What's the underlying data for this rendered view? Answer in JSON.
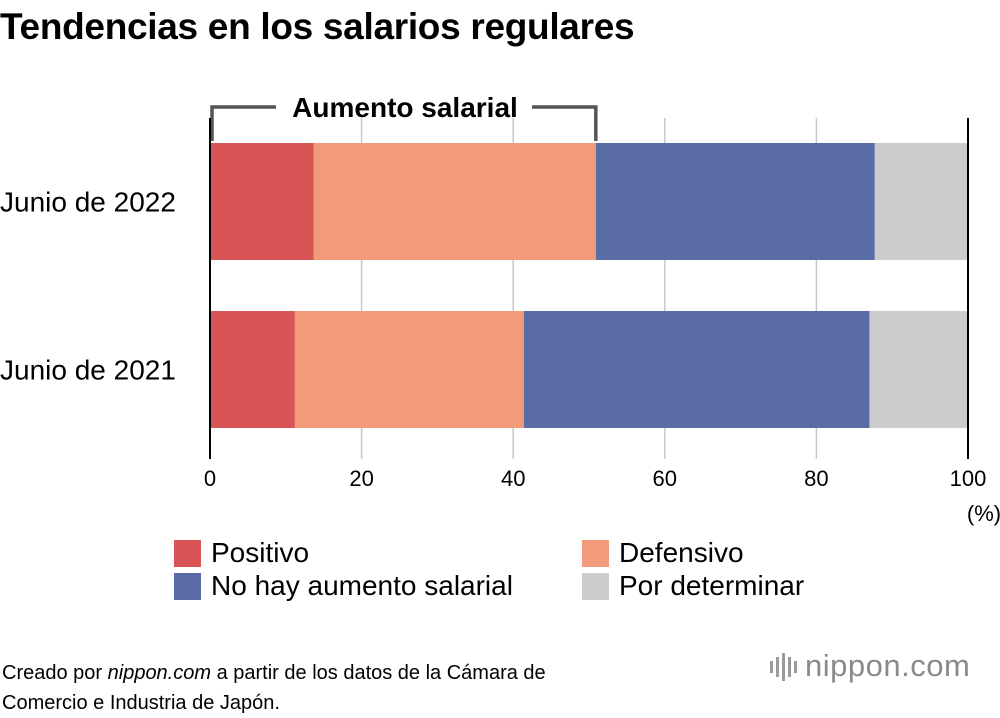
{
  "title": "Tendencias en los salarios regulares",
  "chart_data": {
    "type": "bar",
    "orientation": "horizontal",
    "stacked": true,
    "categories": [
      "Junio de 2022",
      "Junio de 2021"
    ],
    "series": [
      {
        "name": "Positivo",
        "color": "#d95454",
        "values": [
          13.7,
          11.2
        ]
      },
      {
        "name": "Defensivo",
        "color": "#f29b7b",
        "values": [
          37.2,
          30.2
        ]
      },
      {
        "name": "No hay aumento salarial",
        "color": "#596ca6",
        "values": [
          36.8,
          45.6
        ]
      },
      {
        "name": "Por determinar",
        "color": "#cccccc",
        "values": [
          12.3,
          13.0
        ]
      }
    ],
    "xlim": [
      0,
      100
    ],
    "xticks": [
      "0",
      "20",
      "40",
      "60",
      "80",
      "100"
    ],
    "xunit": "(%)",
    "grid": true,
    "annotation": {
      "label": "Aumento salarial",
      "from": 0,
      "to": 50.9
    }
  },
  "legend": [
    {
      "label": "Positivo",
      "color": "#d95454"
    },
    {
      "label": "Defensivo",
      "color": "#f29b7b"
    },
    {
      "label": "No hay aumento salarial",
      "color": "#596ca6"
    },
    {
      "label": "Por determinar",
      "color": "#cccccc"
    }
  ],
  "source": {
    "prefix": "Creado por ",
    "site": "nippon.com",
    "suffix": " a partir de los datos de la Cámara de",
    "line2": "Comercio e Industria de Japón."
  },
  "logo": {
    "text": "nippon.com"
  }
}
